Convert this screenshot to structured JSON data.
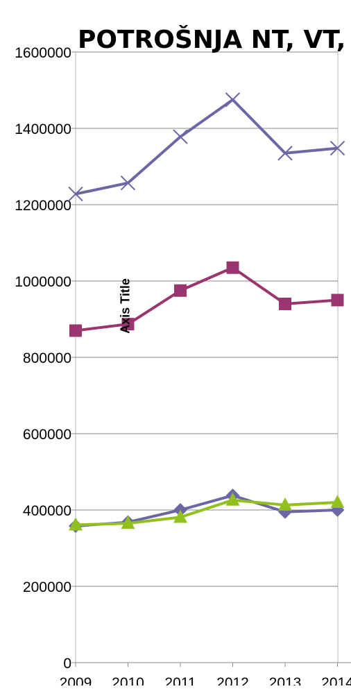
{
  "chart_data": {
    "type": "line",
    "title": "POTROŠNJA NT, VT,",
    "ylabel": "Axis Title",
    "categories": [
      "2009",
      "2010",
      "2011",
      "2012",
      "2013",
      "2014"
    ],
    "ylim": [
      0,
      1600000
    ],
    "yticks": [
      "0",
      "200000",
      "400000",
      "600000",
      "800000",
      "1000000",
      "1200000",
      "1400000",
      "1600000"
    ],
    "grid": true,
    "series": [
      {
        "values": [
          1228000,
          1257000,
          1378000,
          1475000,
          1335000,
          1348000
        ],
        "color": "#6b67a4",
        "marker": "x"
      },
      {
        "values": [
          870000,
          887000,
          975000,
          1035000,
          940000,
          950000
        ],
        "color": "#9b356f",
        "marker": "square"
      },
      {
        "values": [
          358000,
          368000,
          400000,
          438000,
          395000,
          400000
        ],
        "color": "#6b67a4",
        "marker": "diamond"
      },
      {
        "values": [
          361000,
          365000,
          381000,
          426000,
          413000,
          420000
        ],
        "color": "#92c01f",
        "marker": "triangle"
      }
    ]
  }
}
